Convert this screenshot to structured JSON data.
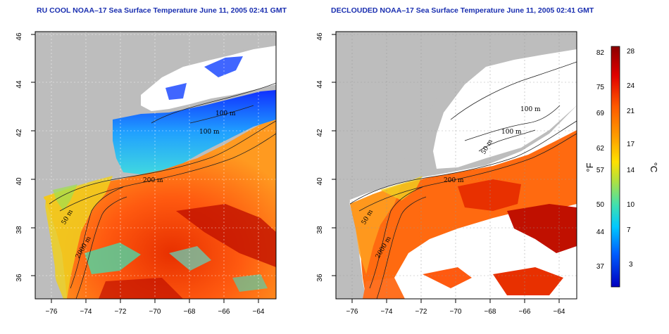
{
  "titles": {
    "left": "RU COOL NOAA–17 Sea Surface Temperature June 11, 2005 02:41 GMT",
    "right": "DECLOUDED NOAA–17 Sea Surface Temperature June 11, 2005 02:41 GMT"
  },
  "axes": {
    "lat_ticks": [
      "46",
      "44",
      "42",
      "40",
      "38",
      "36"
    ],
    "lon_ticks": [
      "−76",
      "−74",
      "−72",
      "−70",
      "−68",
      "−66",
      "−64"
    ],
    "lat_range": [
      35,
      46
    ],
    "lon_range": [
      -77,
      -63
    ]
  },
  "contours": {
    "left": [
      "100 m",
      "100 m",
      "200 m",
      "50 m",
      "2000 m"
    ],
    "right": [
      "100 m",
      "100 m",
      "50 m",
      "200 m",
      "50 m",
      "2000 m"
    ]
  },
  "colorbar": {
    "fahrenheit_label": "°F",
    "celsius_label": "°C",
    "fahrenheit_ticks": [
      "82",
      "75",
      "69",
      "62",
      "57",
      "50",
      "44",
      "37"
    ],
    "celsius_ticks": [
      "28",
      "24",
      "21",
      "17",
      "14",
      "10",
      "7",
      "3"
    ],
    "colors": [
      "#8b0000",
      "#e00000",
      "#ff5a00",
      "#ffa000",
      "#ffe000",
      "#b0e040",
      "#40e0b0",
      "#00c8ff",
      "#0060ff",
      "#0000c0"
    ]
  },
  "map_colors": {
    "land": "#bdbdbd",
    "cloud": "#ffffff"
  }
}
